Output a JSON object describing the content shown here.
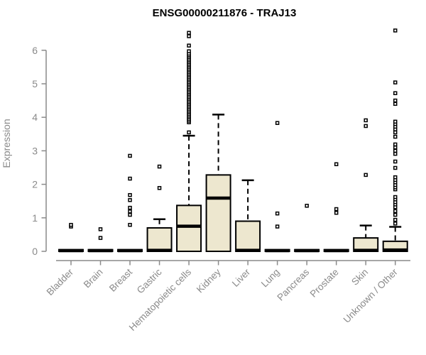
{
  "chart_data": {
    "type": "boxplot",
    "title": "ENSG00000211876 - TRAJ13",
    "ylabel": "Expression",
    "xlabel": "",
    "ylim": [
      0,
      6.7
    ],
    "yticks": [
      0,
      1,
      2,
      3,
      4,
      5,
      6
    ],
    "grid": false,
    "legend": false,
    "colors": {
      "box_fill": "#ede7cf",
      "box_stroke": "#000000",
      "axis": "#8a8a8a",
      "title": "#000000",
      "outlier_fill": "#ffffff"
    },
    "categories": [
      "Bladder",
      "Brain",
      "Breast",
      "Gastric",
      "Hematopoietic cells",
      "Kidney",
      "Liver",
      "Lung",
      "Pancreas",
      "Prostate",
      "Skin",
      "Unknown / Other"
    ],
    "boxes": [
      {
        "category": "Bladder",
        "whisker_low": 0,
        "q1": 0,
        "median": 0.02,
        "q3": 0.05,
        "whisker_high": 0.05,
        "outliers": [
          0.74,
          0.79
        ]
      },
      {
        "category": "Brain",
        "whisker_low": 0,
        "q1": 0,
        "median": 0.02,
        "q3": 0.05,
        "whisker_high": 0.05,
        "outliers": [
          0.4,
          0.66
        ]
      },
      {
        "category": "Breast",
        "whisker_low": 0,
        "q1": 0,
        "median": 0.02,
        "q3": 0.05,
        "whisker_high": 0.05,
        "outliers": [
          0.79,
          1.09,
          1.19,
          1.3,
          1.53,
          1.68,
          2.17,
          2.85
        ]
      },
      {
        "category": "Gastric",
        "whisker_low": 0,
        "q1": 0,
        "median": 0.03,
        "q3": 0.7,
        "whisker_high": 0.96,
        "outliers": [
          1.89,
          2.53
        ]
      },
      {
        "category": "Hematopoietic cells",
        "whisker_low": 0,
        "q1": 0,
        "median": 0.75,
        "q3": 1.37,
        "whisker_high": 3.45,
        "outliers": [
          3.55,
          3.85,
          3.9,
          3.95,
          4.0,
          4.05,
          4.1,
          4.15,
          4.2,
          4.25,
          4.3,
          4.35,
          4.4,
          4.45,
          4.5,
          4.55,
          4.6,
          4.65,
          4.7,
          4.75,
          4.8,
          4.85,
          4.9,
          4.95,
          5.0,
          5.05,
          5.1,
          5.15,
          5.2,
          5.25,
          5.3,
          5.35,
          5.4,
          5.45,
          5.5,
          5.55,
          5.6,
          5.65,
          5.7,
          5.75,
          5.8,
          5.85,
          5.9,
          5.97,
          6.14,
          6.42,
          6.52
        ]
      },
      {
        "category": "Kidney",
        "whisker_low": 0,
        "q1": 0,
        "median": 1.59,
        "q3": 2.28,
        "whisker_high": 4.08,
        "outliers": []
      },
      {
        "category": "Liver",
        "whisker_low": 0,
        "q1": 0,
        "median": 0.03,
        "q3": 0.9,
        "whisker_high": 2.12,
        "outliers": []
      },
      {
        "category": "Lung",
        "whisker_low": 0,
        "q1": 0,
        "median": 0.02,
        "q3": 0.05,
        "whisker_high": 0.05,
        "outliers": [
          0.74,
          1.13,
          3.83
        ]
      },
      {
        "category": "Pancreas",
        "whisker_low": 0,
        "q1": 0,
        "median": 0.02,
        "q3": 0.05,
        "whisker_high": 0.05,
        "outliers": [
          1.36
        ]
      },
      {
        "category": "Prostate",
        "whisker_low": 0,
        "q1": 0,
        "median": 0.02,
        "q3": 0.05,
        "whisker_high": 0.05,
        "outliers": [
          1.15,
          1.26,
          2.6
        ]
      },
      {
        "category": "Skin",
        "whisker_low": 0,
        "q1": 0,
        "median": 0.03,
        "q3": 0.4,
        "whisker_high": 0.77,
        "outliers": [
          2.28,
          3.74,
          3.91
        ]
      },
      {
        "category": "Unknown / Other",
        "whisker_low": 0,
        "q1": 0,
        "median": 0.04,
        "q3": 0.3,
        "whisker_high": 0.73,
        "outliers": [
          0.83,
          0.94,
          1.09,
          1.2,
          1.32,
          1.4,
          1.47,
          1.55,
          1.62,
          1.85,
          1.91,
          1.98,
          2.06,
          2.13,
          2.21,
          2.49,
          2.68,
          2.91,
          3.0,
          3.1,
          3.19,
          3.42,
          3.55,
          3.64,
          3.72,
          3.8,
          3.87,
          4.4,
          4.5,
          4.72,
          5.04,
          6.59
        ]
      }
    ]
  }
}
